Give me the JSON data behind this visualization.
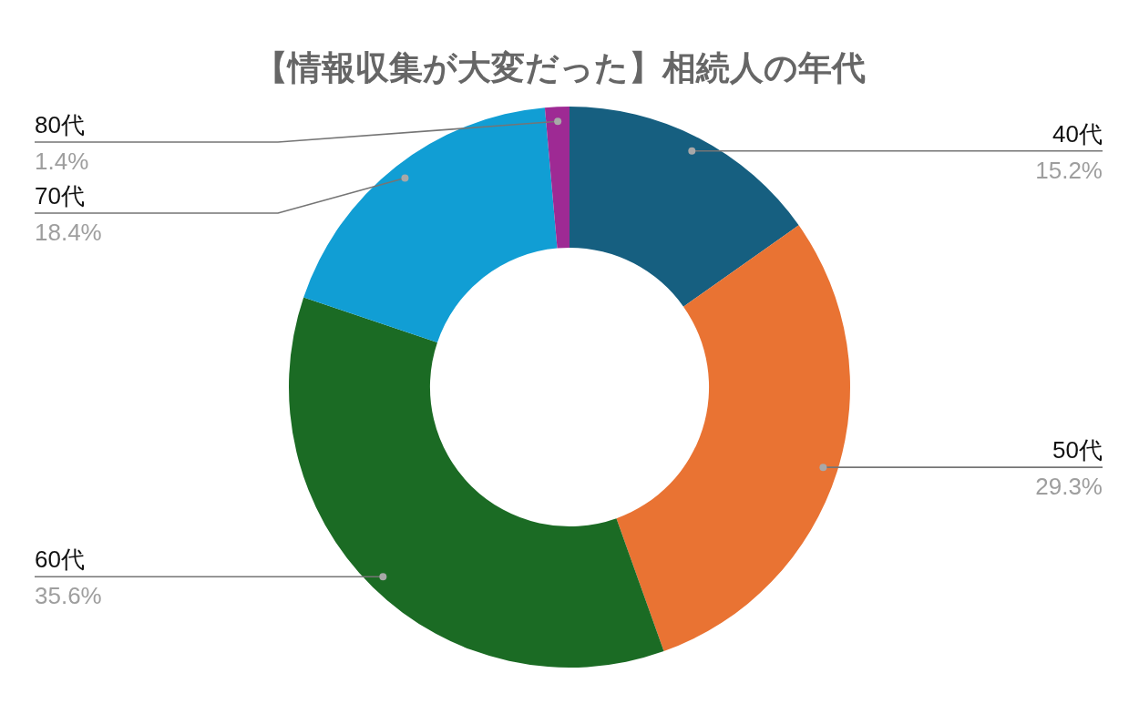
{
  "chart_data": {
    "type": "donut",
    "title": "【情報収集が大変だった】相続人の年代",
    "categories": [
      "40代",
      "50代",
      "60代",
      "70代",
      "80代"
    ],
    "values": [
      15.2,
      29.3,
      35.6,
      18.4,
      1.4
    ],
    "colors": [
      "#165f80",
      "#e97333",
      "#1b6b24",
      "#119ed4",
      "#9e2a94"
    ],
    "value_labels": [
      "15.2%",
      "29.3%",
      "35.6%",
      "18.4%",
      "1.4%"
    ]
  }
}
